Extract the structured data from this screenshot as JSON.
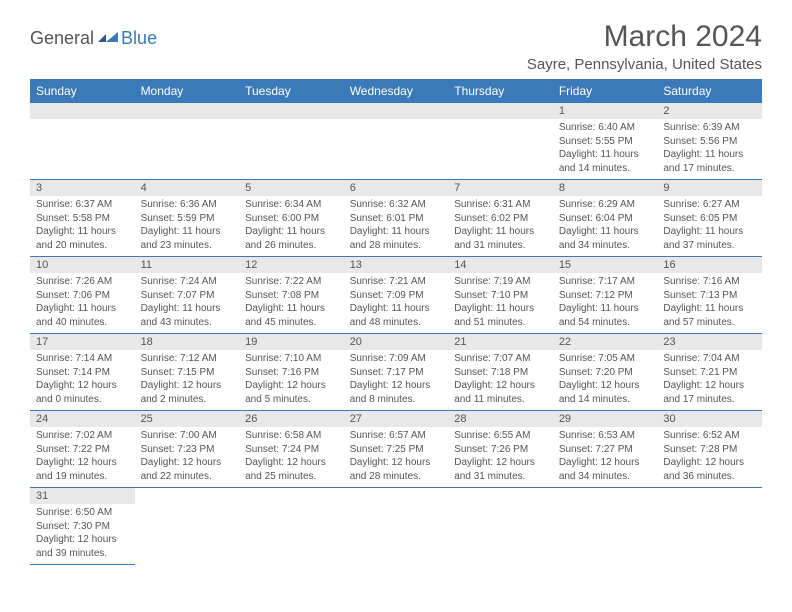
{
  "logo": {
    "general": "General",
    "blue": "Blue"
  },
  "title": "March 2024",
  "location": "Sayre, Pennsylvania, United States",
  "colors": {
    "header_bg": "#3a7ab8",
    "header_text": "#ffffff",
    "text": "#555555",
    "cell_num_bg": "#e8e8e8",
    "rule": "#3a7ab8"
  },
  "weekdays": [
    "Sunday",
    "Monday",
    "Tuesday",
    "Wednesday",
    "Thursday",
    "Friday",
    "Saturday"
  ],
  "weeks": [
    [
      null,
      null,
      null,
      null,
      null,
      {
        "n": "1",
        "sunrise": "6:40 AM",
        "sunset": "5:55 PM",
        "daylight": "11 hours and 14 minutes."
      },
      {
        "n": "2",
        "sunrise": "6:39 AM",
        "sunset": "5:56 PM",
        "daylight": "11 hours and 17 minutes."
      }
    ],
    [
      {
        "n": "3",
        "sunrise": "6:37 AM",
        "sunset": "5:58 PM",
        "daylight": "11 hours and 20 minutes."
      },
      {
        "n": "4",
        "sunrise": "6:36 AM",
        "sunset": "5:59 PM",
        "daylight": "11 hours and 23 minutes."
      },
      {
        "n": "5",
        "sunrise": "6:34 AM",
        "sunset": "6:00 PM",
        "daylight": "11 hours and 26 minutes."
      },
      {
        "n": "6",
        "sunrise": "6:32 AM",
        "sunset": "6:01 PM",
        "daylight": "11 hours and 28 minutes."
      },
      {
        "n": "7",
        "sunrise": "6:31 AM",
        "sunset": "6:02 PM",
        "daylight": "11 hours and 31 minutes."
      },
      {
        "n": "8",
        "sunrise": "6:29 AM",
        "sunset": "6:04 PM",
        "daylight": "11 hours and 34 minutes."
      },
      {
        "n": "9",
        "sunrise": "6:27 AM",
        "sunset": "6:05 PM",
        "daylight": "11 hours and 37 minutes."
      }
    ],
    [
      {
        "n": "10",
        "sunrise": "7:26 AM",
        "sunset": "7:06 PM",
        "daylight": "11 hours and 40 minutes."
      },
      {
        "n": "11",
        "sunrise": "7:24 AM",
        "sunset": "7:07 PM",
        "daylight": "11 hours and 43 minutes."
      },
      {
        "n": "12",
        "sunrise": "7:22 AM",
        "sunset": "7:08 PM",
        "daylight": "11 hours and 45 minutes."
      },
      {
        "n": "13",
        "sunrise": "7:21 AM",
        "sunset": "7:09 PM",
        "daylight": "11 hours and 48 minutes."
      },
      {
        "n": "14",
        "sunrise": "7:19 AM",
        "sunset": "7:10 PM",
        "daylight": "11 hours and 51 minutes."
      },
      {
        "n": "15",
        "sunrise": "7:17 AM",
        "sunset": "7:12 PM",
        "daylight": "11 hours and 54 minutes."
      },
      {
        "n": "16",
        "sunrise": "7:16 AM",
        "sunset": "7:13 PM",
        "daylight": "11 hours and 57 minutes."
      }
    ],
    [
      {
        "n": "17",
        "sunrise": "7:14 AM",
        "sunset": "7:14 PM",
        "daylight": "12 hours and 0 minutes."
      },
      {
        "n": "18",
        "sunrise": "7:12 AM",
        "sunset": "7:15 PM",
        "daylight": "12 hours and 2 minutes."
      },
      {
        "n": "19",
        "sunrise": "7:10 AM",
        "sunset": "7:16 PM",
        "daylight": "12 hours and 5 minutes."
      },
      {
        "n": "20",
        "sunrise": "7:09 AM",
        "sunset": "7:17 PM",
        "daylight": "12 hours and 8 minutes."
      },
      {
        "n": "21",
        "sunrise": "7:07 AM",
        "sunset": "7:18 PM",
        "daylight": "12 hours and 11 minutes."
      },
      {
        "n": "22",
        "sunrise": "7:05 AM",
        "sunset": "7:20 PM",
        "daylight": "12 hours and 14 minutes."
      },
      {
        "n": "23",
        "sunrise": "7:04 AM",
        "sunset": "7:21 PM",
        "daylight": "12 hours and 17 minutes."
      }
    ],
    [
      {
        "n": "24",
        "sunrise": "7:02 AM",
        "sunset": "7:22 PM",
        "daylight": "12 hours and 19 minutes."
      },
      {
        "n": "25",
        "sunrise": "7:00 AM",
        "sunset": "7:23 PM",
        "daylight": "12 hours and 22 minutes."
      },
      {
        "n": "26",
        "sunrise": "6:58 AM",
        "sunset": "7:24 PM",
        "daylight": "12 hours and 25 minutes."
      },
      {
        "n": "27",
        "sunrise": "6:57 AM",
        "sunset": "7:25 PM",
        "daylight": "12 hours and 28 minutes."
      },
      {
        "n": "28",
        "sunrise": "6:55 AM",
        "sunset": "7:26 PM",
        "daylight": "12 hours and 31 minutes."
      },
      {
        "n": "29",
        "sunrise": "6:53 AM",
        "sunset": "7:27 PM",
        "daylight": "12 hours and 34 minutes."
      },
      {
        "n": "30",
        "sunrise": "6:52 AM",
        "sunset": "7:28 PM",
        "daylight": "12 hours and 36 minutes."
      }
    ],
    [
      {
        "n": "31",
        "sunrise": "6:50 AM",
        "sunset": "7:30 PM",
        "daylight": "12 hours and 39 minutes."
      },
      null,
      null,
      null,
      null,
      null,
      null
    ]
  ],
  "labels": {
    "sunrise": "Sunrise: ",
    "sunset": "Sunset: ",
    "daylight": "Daylight: "
  }
}
